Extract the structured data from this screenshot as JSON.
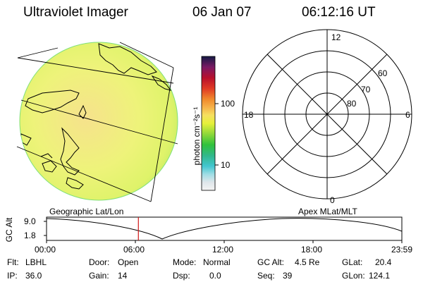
{
  "header": {
    "title": "Ultraviolet Imager",
    "date": "06 Jan 07",
    "time": "06:12:16 UT"
  },
  "colorbar": {
    "unit_label": "photon cm⁻²s⁻¹",
    "ticks": [
      "100",
      "10"
    ]
  },
  "polar_plot": {
    "mlt_labels": {
      "top": "12",
      "left": "18",
      "right": "6",
      "bottom": "0"
    },
    "lat_labels": [
      "60",
      "70",
      "80"
    ]
  },
  "map_labels": {
    "left": "Geographic Lat/Lon",
    "right": "Apex MLat/MLT"
  },
  "timeline": {
    "axis_label": "GC Alt",
    "y_ticks": [
      "9.0",
      "1.8"
    ],
    "x_ticks": [
      "00:00",
      "06:00",
      "12:00",
      "18:00",
      "23:59"
    ],
    "current_time_fraction": 0.2585
  },
  "status": {
    "flt_label": "Flt:",
    "flt_value": "LBHL",
    "ip_label": "IP:",
    "ip_value": "36.0",
    "door_label": "Door:",
    "door_value": "Open",
    "gain_label": "Gain:",
    "gain_value": "14",
    "mode_label": "Mode:",
    "mode_value": "Normal",
    "dsp_label": "Dsp:",
    "dsp_value": "0.0",
    "gcalt_label": "GC Alt:",
    "gcalt_value": "4.5 Re",
    "seq_label": "Seq:",
    "seq_value": "39",
    "glat_label": "GLat:",
    "glat_value": "20.4",
    "glon_label": "GLon:",
    "glon_value": "124.1"
  },
  "colors": {
    "emission_low": "#eef26a",
    "emission_high": "#f4e48a",
    "limb": "#3fd27a",
    "marker": "#d01818"
  }
}
